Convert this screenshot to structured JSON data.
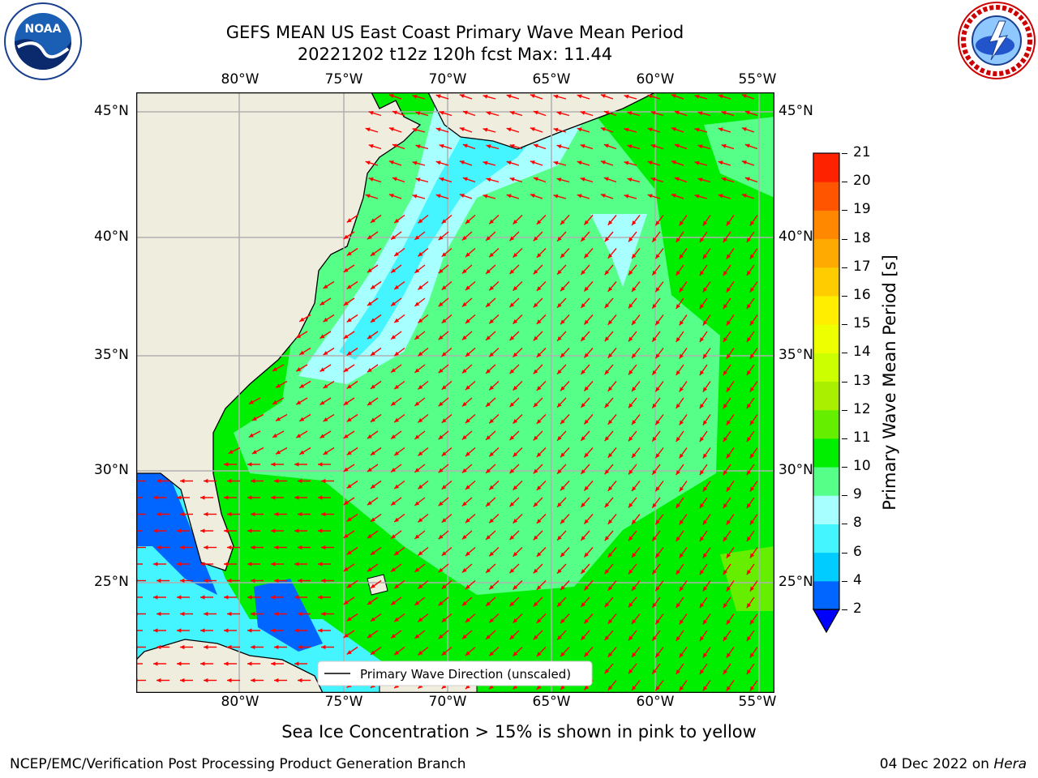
{
  "header": {
    "title_line1": "GEFS MEAN US East Coast Primary Wave Mean Period",
    "title_line2": "20221202 t12z 120h fcst   Max: 11.44"
  },
  "logos": {
    "left": {
      "name": "NOAA",
      "text": "NOAA"
    },
    "right": {
      "name": "National Weather Service"
    }
  },
  "map": {
    "lon_labels": [
      "80°W",
      "75°W",
      "70°W",
      "65°W",
      "60°W",
      "55°W"
    ],
    "lat_labels": [
      "45°N",
      "40°N",
      "35°N",
      "30°N",
      "25°N"
    ],
    "legend_label": "Primary Wave Direction (unscaled)",
    "arrow_color": "#ff0000",
    "land_color": "#efedde"
  },
  "colorbar": {
    "label": "Primary Wave Mean Period [s]",
    "ticks": [
      "2",
      "4",
      "6",
      "8",
      "9",
      "10",
      "11",
      "12",
      "13",
      "14",
      "15",
      "16",
      "17",
      "18",
      "19",
      "20",
      "21"
    ],
    "colors": [
      "#0066ff",
      "#00ccff",
      "#44f4ff",
      "#a8ffff",
      "#55ff88",
      "#00ee00",
      "#66ee00",
      "#aaee00",
      "#ccff00",
      "#eeff00",
      "#ffee00",
      "#ffcc00",
      "#ffaa00",
      "#ff8800",
      "#ff5500",
      "#ff2200",
      "#ff0000"
    ],
    "extend_color": "#0000ff"
  },
  "note": "Sea Ice Concentration > 15% is shown in pink to yellow",
  "footer": {
    "left": "NCEP/EMC/Verification Post Processing Product Generation Branch",
    "right_date": "04 Dec 2022 on ",
    "right_machine": "Hera"
  }
}
